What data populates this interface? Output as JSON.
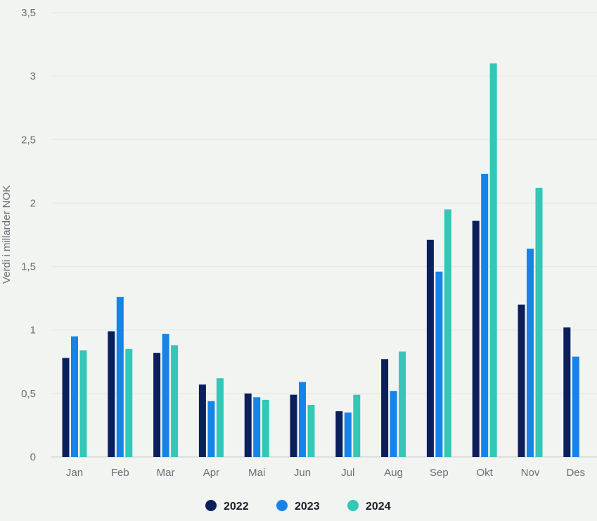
{
  "chart_data": {
    "type": "bar",
    "ylabel": "Verdi i millarder NOK",
    "ylim": [
      0,
      3.5
    ],
    "yticks": [
      {
        "value": 0,
        "label": "0"
      },
      {
        "value": 0.5,
        "label": "0,5"
      },
      {
        "value": 1,
        "label": "1"
      },
      {
        "value": 1.5,
        "label": "1,5"
      },
      {
        "value": 2,
        "label": "2"
      },
      {
        "value": 2.5,
        "label": "2,5"
      },
      {
        "value": 3,
        "label": "3"
      },
      {
        "value": 3.5,
        "label": "3,5"
      }
    ],
    "categories": [
      "Jan",
      "Feb",
      "Mar",
      "Apr",
      "Mai",
      "Jun",
      "Jul",
      "Aug",
      "Sep",
      "Okt",
      "Nov",
      "Des"
    ],
    "series": [
      {
        "name": "2022",
        "color": "#0b1f5c",
        "values": [
          0.78,
          0.99,
          0.82,
          0.57,
          0.5,
          0.49,
          0.36,
          0.77,
          1.71,
          1.86,
          1.2,
          1.02
        ]
      },
      {
        "name": "2023",
        "color": "#1584e8",
        "values": [
          0.95,
          1.26,
          0.97,
          0.44,
          0.47,
          0.59,
          0.35,
          0.52,
          1.46,
          2.23,
          1.64,
          0.79
        ]
      },
      {
        "name": "2024",
        "color": "#34c6b6",
        "values": [
          0.84,
          0.85,
          0.88,
          0.62,
          0.45,
          0.41,
          0.49,
          0.83,
          1.95,
          3.1,
          2.12,
          null
        ]
      }
    ],
    "grid": true,
    "legend": "bottom-center"
  }
}
